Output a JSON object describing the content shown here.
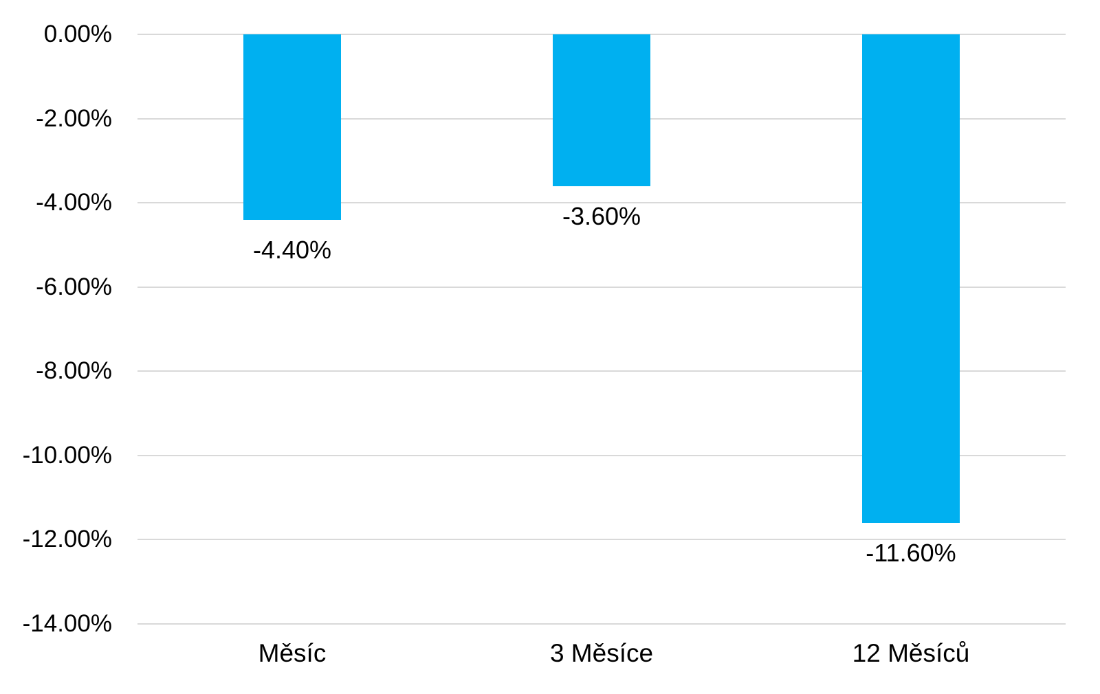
{
  "chart_data": {
    "type": "bar",
    "title": "",
    "categories": [
      "Měsíc",
      "3 Měsíce",
      "12 Měsíců"
    ],
    "values": [
      -4.4,
      -3.6,
      -11.6
    ],
    "data_labels": [
      "-4.40%",
      "-3.60%",
      "-11.60%"
    ],
    "y_ticks": [
      "0.00%",
      "-2.00%",
      "-4.00%",
      "-6.00%",
      "-8.00%",
      "-10.00%",
      "-12.00%",
      "-14.00%"
    ],
    "y_tick_values": [
      0,
      -2,
      -4,
      -6,
      -8,
      -10,
      -12,
      -14
    ],
    "ylim": [
      -14,
      0
    ],
    "xlabel": "",
    "ylabel": "",
    "grid": true,
    "legend": "none",
    "colors": {
      "bar_fill": "#00B0F0",
      "gridline": "#D9D9D9",
      "text": "#000000",
      "background": "#FFFFFF"
    }
  }
}
